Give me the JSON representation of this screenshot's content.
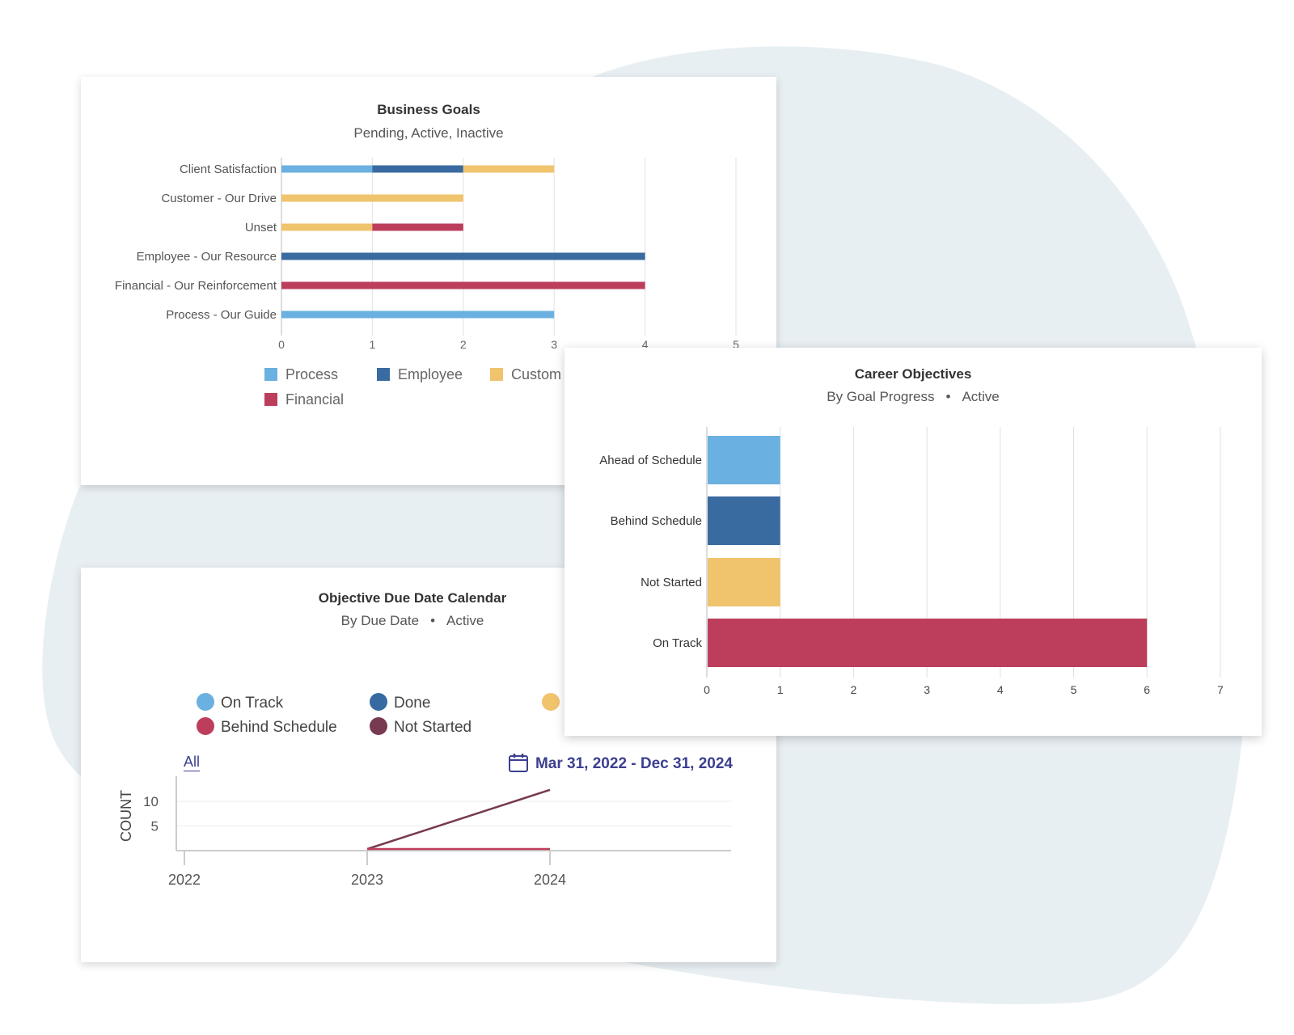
{
  "colors": {
    "process": "#6ab0e0",
    "employee": "#396aa0",
    "customer": "#f0c36d",
    "financial": "#bd3e5c",
    "done": "#366aa0",
    "not_started": "#773a50",
    "link": "#3c3f8f",
    "background_blob": "#e8eff3",
    "grid": "#e0e0e0"
  },
  "business_goals": {
    "title": "Business Goals",
    "subtitle": "Pending, Active, Inactive",
    "legend": [
      {
        "label": "Process",
        "color": "#6ab0e0"
      },
      {
        "label": "Employee",
        "color": "#396aa0"
      },
      {
        "label": "Custom",
        "color": "#f0c36d"
      },
      {
        "label": "Financial",
        "color": "#bd3e5c"
      }
    ]
  },
  "career_objectives": {
    "title": "Career Objectives",
    "subtitle_left": "By Goal Progress",
    "subtitle_right": "Active"
  },
  "objective_calendar": {
    "title": "Objective Due Date Calendar",
    "subtitle_left": "By Due Date",
    "subtitle_right": "Active",
    "legend": [
      {
        "label": "On Track",
        "color": "#6ab0e0"
      },
      {
        "label": "Done",
        "color": "#366aa0"
      },
      {
        "label": "Behind Schedule",
        "color": "#bd3e5c"
      },
      {
        "label": "Not Started",
        "color": "#773a50"
      }
    ],
    "all_link": "All",
    "date_range": "Mar 31, 2022 - Dec 31, 2024",
    "calendar_icon": "calendar-icon"
  },
  "chart_data": [
    {
      "type": "bar",
      "orientation": "horizontal",
      "stacked": true,
      "title": "Business Goals",
      "subtitle": "Pending, Active, Inactive",
      "categories": [
        "Client Satisfaction",
        "Customer - Our Drive",
        "Unset",
        "Employee - Our Resource",
        "Financial - Our Reinforcement",
        "Process - Our Guide"
      ],
      "series": [
        {
          "name": "Process",
          "color": "#6ab0e0",
          "values": [
            1,
            0,
            0,
            0,
            0,
            3
          ]
        },
        {
          "name": "Employee",
          "color": "#396aa0",
          "values": [
            1,
            0,
            0,
            4,
            0,
            0
          ]
        },
        {
          "name": "Custom",
          "color": "#f0c36d",
          "values": [
            1,
            2,
            1,
            0,
            0,
            0
          ]
        },
        {
          "name": "Financial",
          "color": "#bd3e5c",
          "values": [
            0,
            0,
            1,
            0,
            4,
            0
          ]
        }
      ],
      "xlim": [
        0,
        5
      ],
      "xticks": [
        "0",
        "1",
        "2",
        "3",
        "4",
        "5"
      ],
      "grid": true,
      "legend_position": "bottom"
    },
    {
      "type": "bar",
      "orientation": "horizontal",
      "title": "Career Objectives",
      "subtitle": "By Goal Progress • Active",
      "categories": [
        "Ahead of Schedule",
        "Behind Schedule",
        "Not Started",
        "On Track"
      ],
      "values": [
        1,
        1,
        1,
        6
      ],
      "colors": [
        "#6ab0e0",
        "#396aa0",
        "#f0c36d",
        "#bd3e5c"
      ],
      "xlim": [
        0,
        7
      ],
      "xticks": [
        "0",
        "1",
        "2",
        "3",
        "4",
        "5",
        "6",
        "7"
      ],
      "grid": true
    },
    {
      "type": "line",
      "title": "Objective Due Date Calendar",
      "subtitle": "By Due Date • Active",
      "ylabel": "COUNT",
      "x": [
        "2023",
        "2024"
      ],
      "series": [
        {
          "name": "Not Started",
          "color": "#773a50",
          "values": [
            0,
            12
          ]
        },
        {
          "name": "Behind Schedule",
          "color": "#bd3e5c",
          "values": [
            0,
            0
          ]
        }
      ],
      "xticks": [
        "2022",
        "2023",
        "2024"
      ],
      "yticks": [
        "5",
        "10"
      ],
      "grid": true,
      "legend_position": "top"
    }
  ]
}
